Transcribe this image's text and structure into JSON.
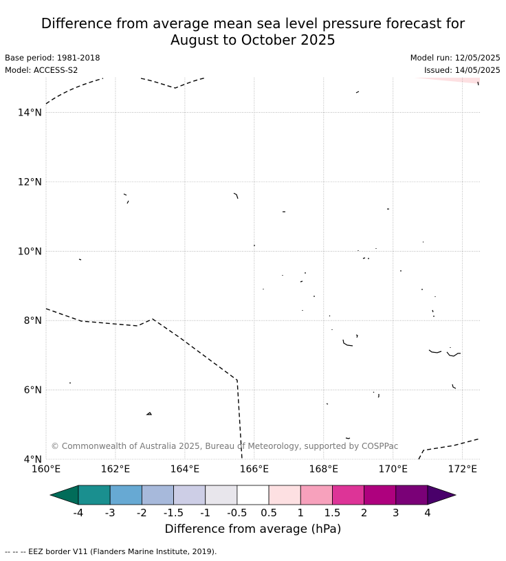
{
  "title_line1": "Difference from average mean sea level pressure forecast for",
  "title_line2": "August to October 2025",
  "meta_left": {
    "base_period": "Base period: 1981-2018",
    "model": "Model: ACCESS-S2"
  },
  "meta_right": {
    "model_run": "Model run: 12/05/2025",
    "issued": "Issued: 14/05/2025"
  },
  "copyright": "© Commonwealth of Australia 2025, Bureau of Meteorology, supported by COSPPac",
  "map": {
    "lon_range": [
      160,
      172.5
    ],
    "lat_range": [
      4,
      15
    ],
    "x_ticks": [
      "160°E",
      "162°E",
      "164°E",
      "166°E",
      "168°E",
      "170°E",
      "172°E"
    ],
    "y_ticks": [
      "14°N",
      "12°N",
      "10°N",
      "8°N",
      "6°N",
      "4°N"
    ]
  },
  "colorbar": {
    "title": "Difference from average (hPa)",
    "ticks": [
      "-4",
      "-3",
      "-2",
      "-1.5",
      "-1",
      "-0.5",
      "0.5",
      "1",
      "1.5",
      "2",
      "3",
      "4"
    ],
    "colors": [
      "#1a8f8f",
      "#67a9d3",
      "#a7b9db",
      "#cdcee6",
      "#e8e6ec",
      "#ffffff",
      "#fde0e2",
      "#f7a1bc",
      "#dd3497",
      "#ae017e",
      "#7a0177"
    ],
    "under_color": "#016c59",
    "over_color": "#49006a"
  },
  "footer": "--  --  -- EEZ border V11 (Flanders Marine Institute, 2019)."
}
